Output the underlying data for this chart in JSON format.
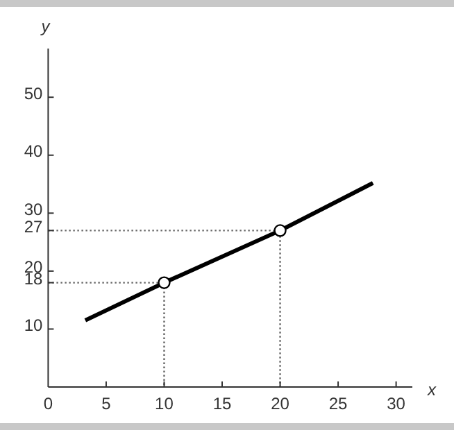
{
  "chart_data": {
    "type": "line",
    "xlabel": "x",
    "ylabel": "y",
    "xlim": [
      0,
      31.4
    ],
    "ylim": [
      0,
      58.4
    ],
    "xticks": [
      0,
      5,
      10,
      15,
      20,
      25,
      30
    ],
    "yticks": [
      10,
      18,
      20,
      27,
      30,
      40,
      50
    ],
    "grid": false,
    "series": [
      {
        "color": "#000000",
        "x": [
          3.2,
          10,
          20,
          28
        ],
        "values": [
          11.5,
          18,
          27,
          35.2
        ],
        "marker": "none",
        "line_style": "solid"
      },
      {
        "color": "#666666",
        "x": [
          0,
          10,
          10
        ],
        "values": [
          18,
          18,
          0
        ],
        "marker": "none",
        "line_style": "dotted"
      },
      {
        "color": "#666666",
        "x": [
          0,
          20,
          20
        ],
        "values": [
          27,
          27,
          0
        ],
        "marker": "none",
        "line_style": "dotted"
      },
      {
        "type": "scatter",
        "color": "#000000",
        "x": [
          10,
          20
        ],
        "values": [
          18,
          27
        ],
        "marker": "circle"
      }
    ]
  }
}
